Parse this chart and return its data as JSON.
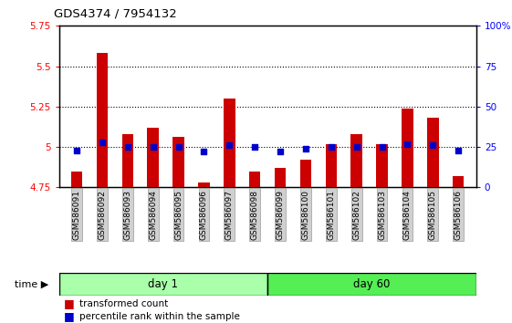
{
  "title": "GDS4374 / 7954132",
  "samples": [
    "GSM586091",
    "GSM586092",
    "GSM586093",
    "GSM586094",
    "GSM586095",
    "GSM586096",
    "GSM586097",
    "GSM586098",
    "GSM586099",
    "GSM586100",
    "GSM586101",
    "GSM586102",
    "GSM586103",
    "GSM586104",
    "GSM586105",
    "GSM586106"
  ],
  "red_values": [
    4.85,
    5.58,
    5.08,
    5.12,
    5.06,
    4.78,
    5.3,
    4.85,
    4.87,
    4.92,
    5.02,
    5.08,
    5.02,
    5.24,
    5.18,
    4.82
  ],
  "blue_values": [
    23,
    28,
    25,
    25,
    25,
    22,
    26,
    25,
    22,
    24,
    25,
    25,
    25,
    27,
    26,
    23
  ],
  "ylim_left": [
    4.75,
    5.75
  ],
  "ylim_right": [
    0,
    100
  ],
  "yticks_left": [
    4.75,
    5.0,
    5.25,
    5.5,
    5.75
  ],
  "yticks_right": [
    0,
    25,
    50,
    75,
    100
  ],
  "ytick_labels_left": [
    "4.75",
    "5",
    "5.25",
    "5.5",
    "5.75"
  ],
  "ytick_labels_right": [
    "0",
    "25",
    "50",
    "75",
    "100%"
  ],
  "grid_lines": [
    5.0,
    5.25,
    5.5
  ],
  "day1_count": 8,
  "day60_count": 8,
  "day1_label": "day 1",
  "day60_label": "day 60",
  "time_label": "time",
  "legend_red": "transformed count",
  "legend_blue": "percentile rank within the sample",
  "bar_color": "#cc0000",
  "dot_color": "#0000cc",
  "day1_color": "#aaffaa",
  "day60_color": "#55ee55",
  "bar_bottom": 4.75,
  "bar_width": 0.45
}
